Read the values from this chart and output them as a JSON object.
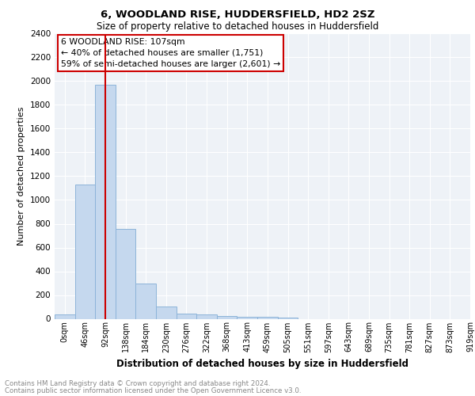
{
  "title1": "6, WOODLAND RISE, HUDDERSFIELD, HD2 2SZ",
  "title2": "Size of property relative to detached houses in Huddersfield",
  "xlabel": "Distribution of detached houses by size in Huddersfield",
  "ylabel": "Number of detached properties",
  "bin_labels": [
    "0sqm",
    "46sqm",
    "92sqm",
    "138sqm",
    "184sqm",
    "230sqm",
    "276sqm",
    "322sqm",
    "368sqm",
    "413sqm",
    "459sqm",
    "505sqm",
    "551sqm",
    "597sqm",
    "643sqm",
    "689sqm",
    "735sqm",
    "781sqm",
    "827sqm",
    "873sqm",
    "919sqm"
  ],
  "bar_heights": [
    35,
    1130,
    1970,
    760,
    300,
    105,
    45,
    35,
    25,
    20,
    15,
    12,
    0,
    0,
    0,
    0,
    0,
    0,
    0,
    0
  ],
  "bar_color": "#c5d8ee",
  "bar_edge_color": "#8db4d9",
  "ylim": [
    0,
    2400
  ],
  "yticks": [
    0,
    200,
    400,
    600,
    800,
    1000,
    1200,
    1400,
    1600,
    1800,
    2000,
    2200,
    2400
  ],
  "property_bin_index": 2,
  "annotation_title": "6 WOODLAND RISE: 107sqm",
  "annotation_line1": "← 40% of detached houses are smaller (1,751)",
  "annotation_line2": "59% of semi-detached houses are larger (2,601) →",
  "annotation_color": "#cc0000",
  "footer_line1": "Contains HM Land Registry data © Crown copyright and database right 2024.",
  "footer_line2": "Contains public sector information licensed under the Open Government Licence v3.0.",
  "background_color": "#eef2f7",
  "grid_color": "#ffffff"
}
